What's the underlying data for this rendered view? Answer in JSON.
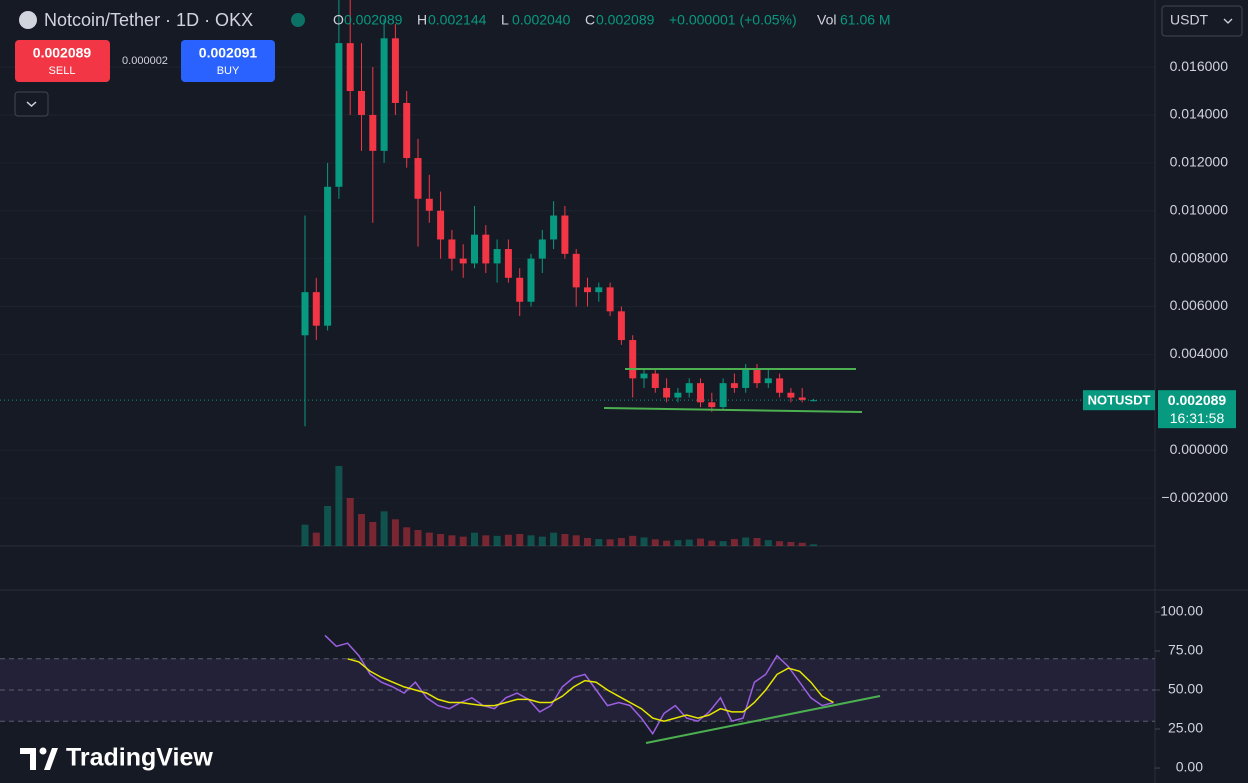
{
  "chart_data": {
    "type": "candlestick",
    "title": "Notcoin/Tether · 1D · OKX",
    "header": {
      "ohlc": [
        {
          "label": "O",
          "value": "0.002089"
        },
        {
          "label": "H",
          "value": "0.002144"
        },
        {
          "label": "L",
          "value": "0.002040"
        },
        {
          "label": "C",
          "value": "0.002089"
        }
      ],
      "change": "+0.000001 (+0.05%)",
      "vol_label": "Vol",
      "vol_value": "61.06 M"
    },
    "trade_panel": {
      "sell_price": "0.002089",
      "sell_label": "SELL",
      "spread": "0.000002",
      "buy_price": "0.002091",
      "buy_label": "BUY"
    },
    "currency": "USDT",
    "symbol": "NOTUSDT",
    "countdown": "16:31:58",
    "branding": "TradingView",
    "up_color": "#089981",
    "down_color": "#f23645",
    "open": [
      0.0048,
      0.0066,
      0.0052,
      0.011,
      0.017,
      0.015,
      0.014,
      0.0125,
      0.0172,
      0.0145,
      0.0122,
      0.0105,
      0.01,
      0.0088,
      0.008,
      0.0078,
      0.009,
      0.0078,
      0.0084,
      0.0072,
      0.0062,
      0.008,
      0.0088,
      0.0098,
      0.0082,
      0.0068,
      0.0066,
      0.0068,
      0.0058,
      0.0046,
      0.003,
      0.0032,
      0.0026,
      0.0022,
      0.0024,
      0.0028,
      0.002,
      0.0018,
      0.0028,
      0.0026,
      0.0034,
      0.0028,
      0.003,
      0.0024,
      0.0022,
      0.002089
    ],
    "high": [
      0.0098,
      0.0072,
      0.012,
      0.0188,
      0.0188,
      0.017,
      0.016,
      0.018,
      0.0178,
      0.015,
      0.013,
      0.0115,
      0.0108,
      0.0092,
      0.0086,
      0.0102,
      0.0094,
      0.0088,
      0.0088,
      0.0076,
      0.0082,
      0.0092,
      0.0104,
      0.0102,
      0.0084,
      0.0072,
      0.007,
      0.007,
      0.006,
      0.0048,
      0.0034,
      0.0034,
      0.003,
      0.0026,
      0.003,
      0.003,
      0.0024,
      0.003,
      0.0032,
      0.0036,
      0.0036,
      0.0034,
      0.0032,
      0.0026,
      0.0026,
      0.002144
    ],
    "low": [
      0.001,
      0.0046,
      0.005,
      0.0105,
      0.014,
      0.0125,
      0.0095,
      0.012,
      0.014,
      0.0118,
      0.0085,
      0.0095,
      0.008,
      0.0075,
      0.0072,
      0.0076,
      0.0074,
      0.007,
      0.007,
      0.0056,
      0.006,
      0.0074,
      0.0084,
      0.008,
      0.006,
      0.006,
      0.0062,
      0.0056,
      0.0044,
      0.0022,
      0.0026,
      0.0024,
      0.002,
      0.002,
      0.0022,
      0.0018,
      0.0016,
      0.0017,
      0.0024,
      0.0024,
      0.0026,
      0.0026,
      0.0022,
      0.002,
      0.002,
      0.00204
    ],
    "close": [
      0.0066,
      0.0052,
      0.011,
      0.017,
      0.015,
      0.014,
      0.0125,
      0.0172,
      0.0145,
      0.0122,
      0.0105,
      0.01,
      0.0088,
      0.008,
      0.0078,
      0.009,
      0.0078,
      0.0084,
      0.0072,
      0.0062,
      0.008,
      0.0088,
      0.0098,
      0.0082,
      0.0068,
      0.0066,
      0.0068,
      0.0058,
      0.0046,
      0.003,
      0.0032,
      0.0026,
      0.0022,
      0.0024,
      0.0028,
      0.002,
      0.0018,
      0.0028,
      0.0026,
      0.0034,
      0.0028,
      0.003,
      0.0024,
      0.0022,
      0.0021,
      0.002089
    ],
    "volume": [
      800,
      500,
      1500,
      3000,
      1800,
      1200,
      900,
      1300,
      1000,
      700,
      600,
      500,
      450,
      400,
      350,
      500,
      400,
      380,
      420,
      450,
      400,
      350,
      500,
      450,
      400,
      300,
      260,
      250,
      300,
      380,
      320,
      250,
      200,
      220,
      240,
      280,
      200,
      180,
      260,
      320,
      300,
      220,
      180,
      150,
      120,
      61.06
    ],
    "ylim": [
      -0.004,
      0.0188
    ],
    "yticks": [
      {
        "value": 0.016,
        "label": "0.016000"
      },
      {
        "value": 0.014,
        "label": "0.014000"
      },
      {
        "value": 0.012,
        "label": "0.012000"
      },
      {
        "value": 0.01,
        "label": "0.010000"
      },
      {
        "value": 0.008,
        "label": "0.008000"
      },
      {
        "value": 0.006,
        "label": "0.006000"
      },
      {
        "value": 0.004,
        "label": "0.004000"
      },
      {
        "value": 0,
        "label": "0.000000"
      },
      {
        "value": -0.002,
        "label": "−0.002000"
      }
    ],
    "rsi": {
      "ylim": [
        -9.6,
        114.1
      ],
      "yticks": [
        {
          "value": 100,
          "label": "100.00"
        },
        {
          "value": 75,
          "label": "75.00"
        },
        {
          "value": 50,
          "label": "50.00"
        },
        {
          "value": 25,
          "label": "25.00"
        },
        {
          "value": 0,
          "label": "0.00"
        }
      ],
      "bands": [
        70,
        50,
        30
      ],
      "color": "#9c5fe0",
      "ma_color": "#e6e600",
      "values": [
        85,
        78,
        80,
        72,
        60,
        55,
        52,
        48,
        55,
        45,
        40,
        38,
        42,
        45,
        40,
        38,
        45,
        48,
        44,
        36,
        40,
        52,
        58,
        60,
        50,
        40,
        42,
        40,
        32,
        22,
        35,
        40,
        32,
        30,
        36,
        45,
        30,
        32,
        55,
        60,
        72,
        65,
        55,
        45,
        40,
        42
      ],
      "ma_values": [
        null,
        null,
        70,
        68,
        62,
        58,
        55,
        52,
        50,
        48,
        44,
        42,
        42,
        41,
        40,
        40,
        42,
        44,
        44,
        42,
        42,
        46,
        52,
        56,
        55,
        50,
        46,
        42,
        38,
        32,
        30,
        32,
        34,
        32,
        34,
        38,
        36,
        36,
        42,
        50,
        60,
        64,
        62,
        55,
        46,
        42
      ]
    }
  }
}
